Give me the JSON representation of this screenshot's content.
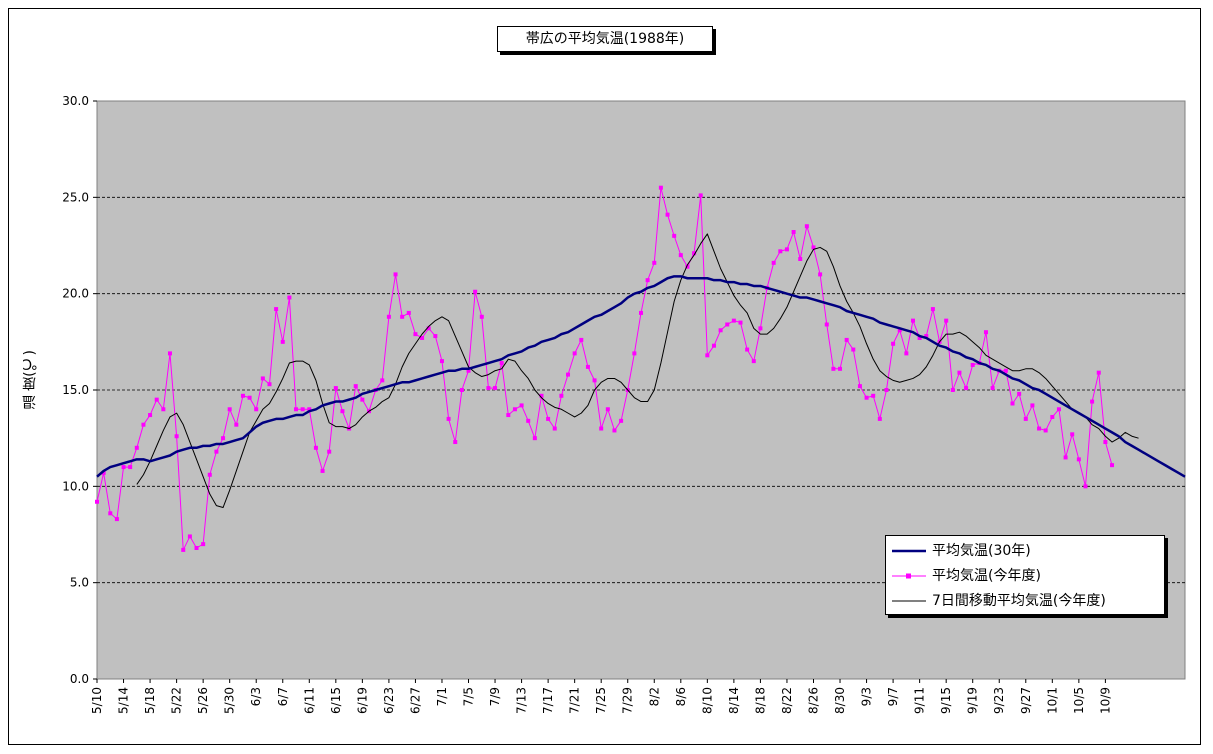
{
  "chart_data": {
    "type": "line",
    "title": "帯広の平均気温(1988年)",
    "ylabel": "温 度(℃)",
    "xlabel": "",
    "ylim": [
      0,
      30
    ],
    "yticks": [
      "0.0",
      "5.0",
      "10.0",
      "15.0",
      "20.0",
      "25.0",
      "30.0"
    ],
    "ytick_values": [
      0,
      5,
      10,
      15,
      20,
      25,
      30
    ],
    "grid": "horizontal dashed",
    "legend_position": "lower-right",
    "xtick_labels": [
      "5/10",
      "5/14",
      "5/18",
      "5/22",
      "5/26",
      "5/30",
      "6/3",
      "6/7",
      "6/11",
      "6/15",
      "6/19",
      "6/23",
      "6/27",
      "7/1",
      "7/5",
      "7/9",
      "7/13",
      "7/17",
      "7/21",
      "7/25",
      "7/29",
      "8/2",
      "8/6",
      "8/10",
      "8/14",
      "8/18",
      "8/22",
      "8/26",
      "8/30",
      "9/3",
      "9/7",
      "9/11",
      "9/15",
      "9/19",
      "9/23",
      "9/27",
      "10/1",
      "10/5",
      "10/9"
    ],
    "series": [
      {
        "name": "平均気温(30年)",
        "color": "#000080",
        "values": [
          10.5,
          10.8,
          11.0,
          11.1,
          11.2,
          11.3,
          11.4,
          11.4,
          11.3,
          11.4,
          11.5,
          11.6,
          11.8,
          11.9,
          12.0,
          12.0,
          12.1,
          12.1,
          12.2,
          12.2,
          12.3,
          12.4,
          12.5,
          12.8,
          13.1,
          13.3,
          13.4,
          13.5,
          13.5,
          13.6,
          13.7,
          13.7,
          13.9,
          14.0,
          14.2,
          14.3,
          14.4,
          14.4,
          14.5,
          14.6,
          14.8,
          14.9,
          15.0,
          15.1,
          15.2,
          15.3,
          15.4,
          15.4,
          15.5,
          15.6,
          15.7,
          15.8,
          15.9,
          16.0,
          16.0,
          16.1,
          16.1,
          16.2,
          16.3,
          16.4,
          16.5,
          16.6,
          16.8,
          16.9,
          17.0,
          17.2,
          17.3,
          17.5,
          17.6,
          17.7,
          17.9,
          18.0,
          18.2,
          18.4,
          18.6,
          18.8,
          18.9,
          19.1,
          19.3,
          19.5,
          19.8,
          20.0,
          20.1,
          20.3,
          20.4,
          20.6,
          20.8,
          20.9,
          20.9,
          20.8,
          20.8,
          20.8,
          20.8,
          20.7,
          20.7,
          20.6,
          20.6,
          20.5,
          20.5,
          20.4,
          20.4,
          20.3,
          20.2,
          20.1,
          20.0,
          19.9,
          19.8,
          19.8,
          19.7,
          19.6,
          19.5,
          19.4,
          19.3,
          19.1,
          19.0,
          18.9,
          18.8,
          18.7,
          18.5,
          18.4,
          18.3,
          18.2,
          18.1,
          18.0,
          17.8,
          17.7,
          17.5,
          17.3,
          17.2,
          17.0,
          16.9,
          16.7,
          16.6,
          16.4,
          16.3,
          16.1,
          16.0,
          15.8,
          15.6,
          15.5,
          15.3,
          15.1,
          15.0,
          14.8,
          14.6,
          14.4,
          14.2,
          14.0,
          13.8,
          13.6,
          13.4,
          13.2,
          13.0,
          12.8,
          12.6,
          12.3,
          12.1,
          11.9,
          11.7,
          11.5,
          11.3,
          11.1,
          10.9,
          10.7,
          10.5
        ]
      },
      {
        "name": "平均気温(今年度)",
        "color": "#ff00ff",
        "values": [
          9.2,
          10.7,
          8.6,
          8.3,
          11.0,
          11.0,
          12.0,
          13.2,
          13.7,
          14.5,
          14.0,
          16.9,
          12.6,
          6.7,
          7.4,
          6.8,
          7.0,
          10.6,
          11.8,
          12.5,
          14.0,
          13.2,
          14.7,
          14.6,
          14.0,
          15.6,
          15.3,
          19.2,
          17.5,
          19.8,
          14.0,
          14.0,
          14.0,
          12.0,
          10.8,
          11.8,
          15.1,
          13.9,
          13.0,
          15.2,
          14.5,
          13.9,
          15.0,
          15.5,
          18.8,
          21.0,
          18.8,
          19.0,
          17.9,
          17.7,
          18.2,
          17.8,
          16.5,
          13.5,
          12.3,
          15.0,
          16.0,
          20.1,
          18.8,
          15.1,
          15.1,
          16.4,
          13.7,
          14.0,
          14.2,
          13.4,
          12.5,
          14.7,
          13.5,
          13.0,
          14.7,
          15.8,
          16.9,
          17.6,
          16.2,
          15.5,
          13.0,
          14.0,
          12.9,
          13.4,
          15.0,
          16.9,
          19.0,
          20.7,
          21.6,
          25.5,
          24.1,
          23.0,
          22.0,
          21.4,
          22.1,
          25.1,
          16.8,
          17.3,
          18.1,
          18.4,
          18.6,
          18.5,
          17.1,
          16.5,
          18.2,
          20.3,
          21.6,
          22.2,
          22.3,
          23.2,
          21.8,
          23.5,
          22.4,
          21.0,
          18.4,
          16.1,
          16.1,
          17.6,
          17.1,
          15.2,
          14.6,
          14.7,
          13.5,
          15.0,
          17.4,
          18.1,
          16.9,
          18.6,
          17.7,
          17.8,
          19.2,
          17.5,
          18.6,
          15.0,
          15.9,
          15.1,
          16.3,
          16.4,
          18.0,
          15.1,
          16.0,
          16.0,
          14.3,
          14.8,
          13.5,
          14.2,
          13.0,
          12.9,
          13.6,
          14.0,
          11.5,
          12.7,
          11.4,
          10.0,
          14.4,
          15.9,
          12.3,
          11.1
        ]
      },
      {
        "name": "7日間移動平均気温(今年度)",
        "color": "#000000",
        "values": [
          null,
          null,
          null,
          null,
          null,
          null,
          10.1,
          10.6,
          11.3,
          12.1,
          12.9,
          13.6,
          13.8,
          13.2,
          12.3,
          11.4,
          10.5,
          9.6,
          9.0,
          8.9,
          9.8,
          10.8,
          11.8,
          12.8,
          13.4,
          14.0,
          14.3,
          14.9,
          15.6,
          16.4,
          16.5,
          16.5,
          16.3,
          15.5,
          14.3,
          13.3,
          13.1,
          13.1,
          13.0,
          13.2,
          13.6,
          13.9,
          14.1,
          14.4,
          14.6,
          15.3,
          16.2,
          16.9,
          17.4,
          17.9,
          18.3,
          18.6,
          18.8,
          18.6,
          17.8,
          17.0,
          16.2,
          15.9,
          15.7,
          15.8,
          16.0,
          16.1,
          16.6,
          16.5,
          16.0,
          15.6,
          15.0,
          14.6,
          14.3,
          14.1,
          14.0,
          13.8,
          13.6,
          13.8,
          14.2,
          15.0,
          15.4,
          15.6,
          15.6,
          15.4,
          15.0,
          14.6,
          14.4,
          14.4,
          15.0,
          16.4,
          18.0,
          19.6,
          20.7,
          21.5,
          22.0,
          22.6,
          23.1,
          22.2,
          21.3,
          20.6,
          19.9,
          19.4,
          19.0,
          18.2,
          17.9,
          17.9,
          18.2,
          18.7,
          19.3,
          20.1,
          20.9,
          21.7,
          22.3,
          22.4,
          22.2,
          21.4,
          20.4,
          19.6,
          19.0,
          18.3,
          17.4,
          16.6,
          16.0,
          15.7,
          15.5,
          15.4,
          15.5,
          15.6,
          15.8,
          16.2,
          16.8,
          17.5,
          17.9,
          17.9,
          18.0,
          17.8,
          17.5,
          17.2,
          16.8,
          16.6,
          16.4,
          16.2,
          16.0,
          16.0,
          16.1,
          16.1,
          15.9,
          15.6,
          15.2,
          14.8,
          14.4,
          14.0,
          13.8,
          13.6,
          13.2,
          13.0,
          12.6,
          12.3,
          12.5,
          12.8,
          12.6,
          12.5
        ]
      }
    ]
  },
  "legend": {
    "items": [
      "平均気温(30年)",
      "平均気温(今年度)",
      "7日間移動平均気温(今年度)"
    ]
  }
}
